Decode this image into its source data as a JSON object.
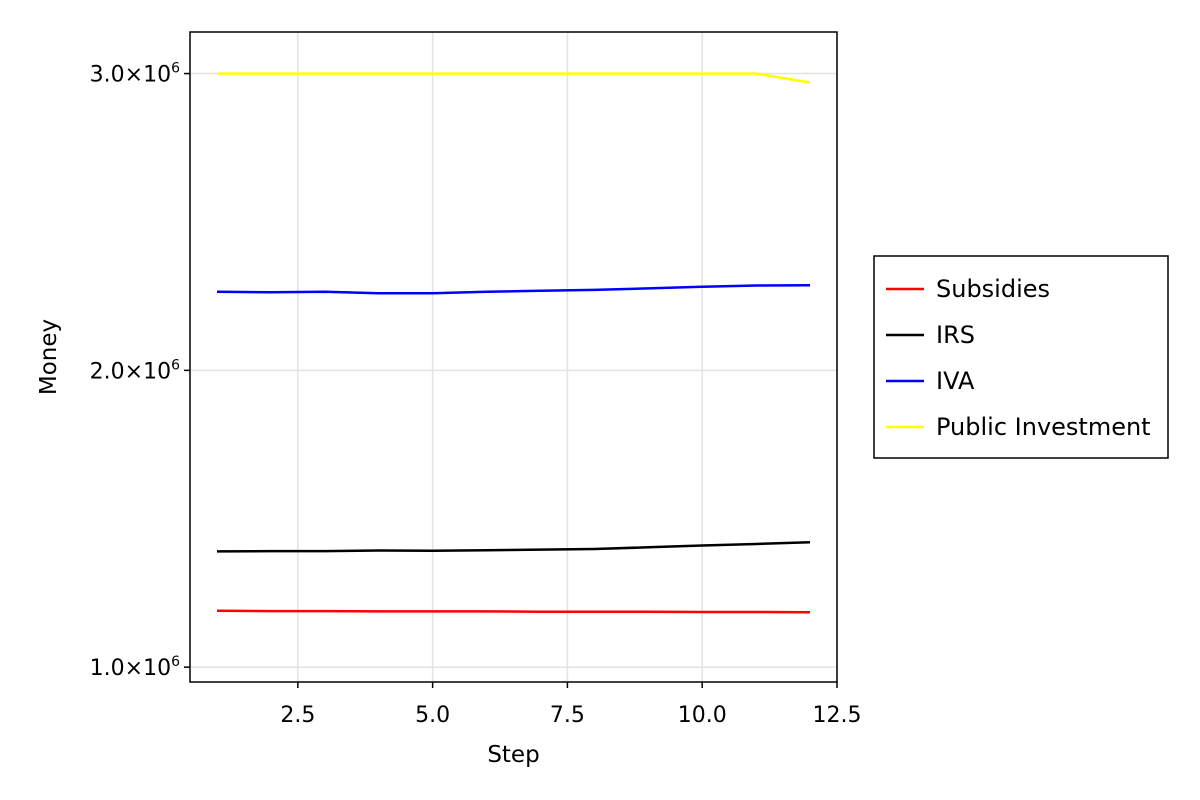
{
  "chart_data": {
    "type": "line",
    "xlabel": "Step",
    "ylabel": "Money",
    "xlim": [
      0.5,
      12.5
    ],
    "ylim": [
      950000,
      3140000
    ],
    "x_ticks": [
      2.5,
      5.0,
      7.5,
      10.0,
      12.5
    ],
    "x_tick_labels": [
      "2.5",
      "5.0",
      "7.5",
      "10.0",
      "12.5"
    ],
    "y_ticks": [
      1000000,
      2000000,
      3000000
    ],
    "y_tick_mantissa": [
      "1.0×10",
      "2.0×10",
      "3.0×10"
    ],
    "y_tick_exponent": "6",
    "grid": true,
    "legend_position": "right",
    "x": [
      1,
      2,
      3,
      4,
      5,
      6,
      7,
      8,
      9,
      10,
      11,
      12
    ],
    "series": [
      {
        "name": "Subsidies",
        "color": "#ff0000",
        "values": [
          1190000,
          1189000,
          1189000,
          1188000,
          1188000,
          1188000,
          1187000,
          1187000,
          1187000,
          1186000,
          1186000,
          1185000
        ]
      },
      {
        "name": "IRS",
        "color": "#000000",
        "values": [
          1390000,
          1391000,
          1391000,
          1393000,
          1392000,
          1394000,
          1396000,
          1398000,
          1404000,
          1410000,
          1415000,
          1421000
        ]
      },
      {
        "name": "IVA",
        "color": "#0000ff",
        "values": [
          2265000,
          2263000,
          2265000,
          2260000,
          2260000,
          2265000,
          2268000,
          2271000,
          2276000,
          2282000,
          2286000,
          2287000
        ]
      },
      {
        "name": "Public Investment",
        "color": "#ffff00",
        "values": [
          3000000,
          3000000,
          3000000,
          3000000,
          3000000,
          3000000,
          3000000,
          3000000,
          3000000,
          3000000,
          3000000,
          2970000
        ]
      }
    ]
  }
}
